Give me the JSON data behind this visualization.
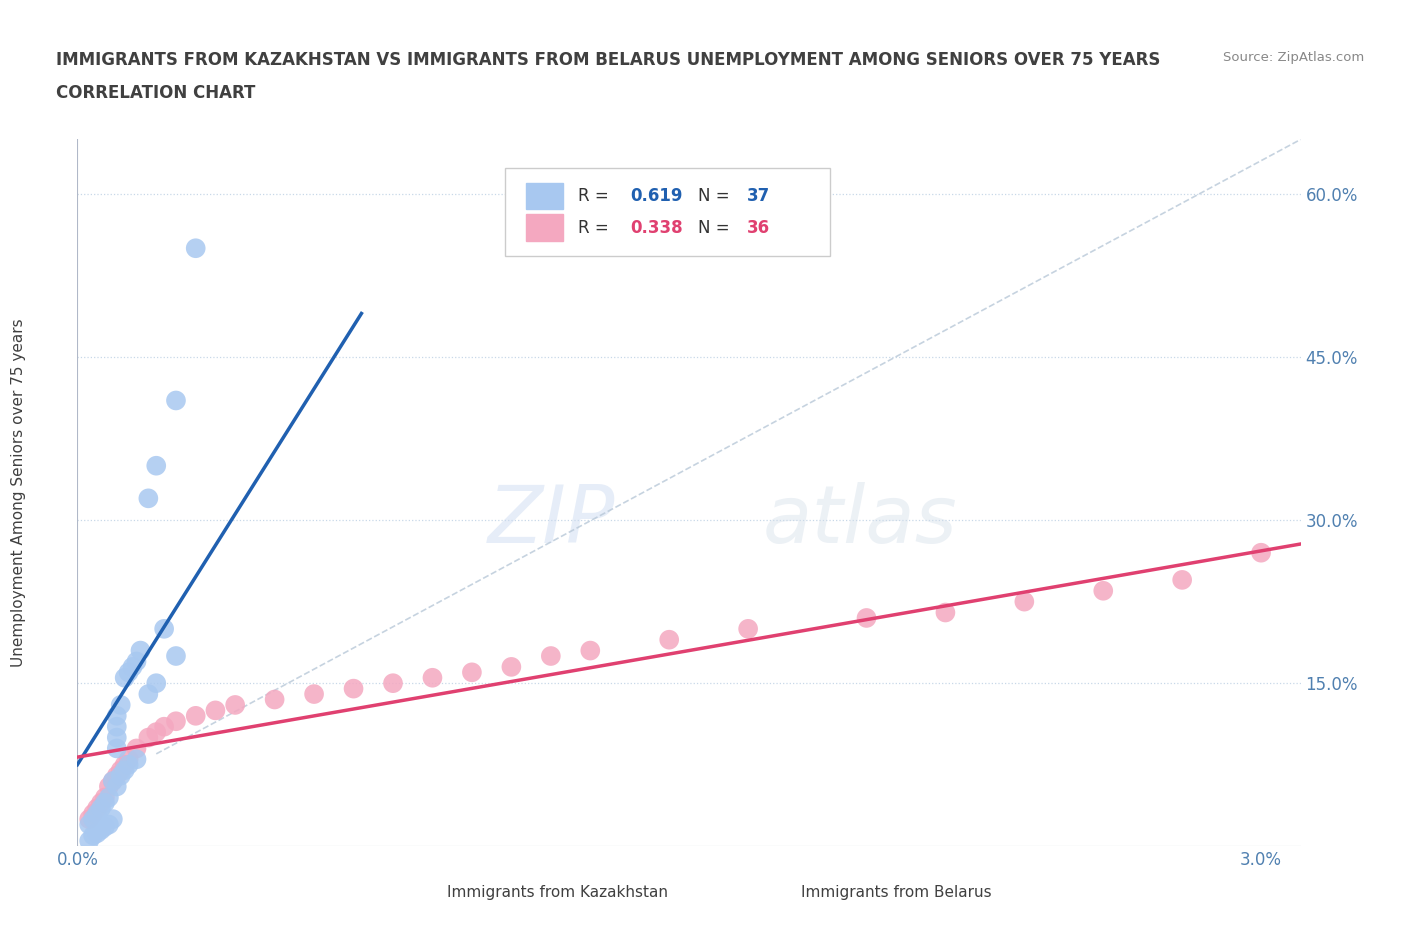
{
  "title_line1": "IMMIGRANTS FROM KAZAKHSTAN VS IMMIGRANTS FROM BELARUS UNEMPLOYMENT AMONG SENIORS OVER 75 YEARS",
  "title_line2": "CORRELATION CHART",
  "source": "Source: ZipAtlas.com",
  "ylabel": "Unemployment Among Seniors over 75 years",
  "watermark": "ZIPatlas",
  "r_kaz": 0.619,
  "n_kaz": 37,
  "r_bel": 0.338,
  "n_bel": 36,
  "kaz_color": "#a8c8f0",
  "bel_color": "#f4a8c0",
  "kaz_line_color": "#2060b0",
  "bel_line_color": "#e04070",
  "diag_color": "#b8c8d8",
  "title_color": "#404040",
  "axis_color": "#5080b0",
  "grid_color": "#c8d8e8",
  "bg_color": "#ffffff",
  "kaz_x": [
    0.0003,
    0.0004,
    0.0005,
    0.0006,
    0.0007,
    0.0008,
    0.0009,
    0.001,
    0.001,
    0.001,
    0.001,
    0.0011,
    0.0012,
    0.0013,
    0.0014,
    0.0015,
    0.0016,
    0.0018,
    0.002,
    0.0022,
    0.0025,
    0.0003,
    0.0004,
    0.0005,
    0.0006,
    0.0007,
    0.0008,
    0.0009,
    0.001,
    0.0011,
    0.0012,
    0.0013,
    0.0015,
    0.0018,
    0.002,
    0.0025,
    0.003
  ],
  "kaz_y": [
    0.02,
    0.025,
    0.03,
    0.035,
    0.04,
    0.045,
    0.06,
    0.09,
    0.1,
    0.11,
    0.12,
    0.13,
    0.155,
    0.16,
    0.165,
    0.17,
    0.18,
    0.32,
    0.35,
    0.2,
    0.175,
    0.005,
    0.01,
    0.012,
    0.015,
    0.018,
    0.02,
    0.025,
    0.055,
    0.065,
    0.07,
    0.075,
    0.08,
    0.14,
    0.15,
    0.41,
    0.55
  ],
  "bel_x": [
    0.0003,
    0.0004,
    0.0005,
    0.0006,
    0.0007,
    0.0008,
    0.0009,
    0.001,
    0.0011,
    0.0012,
    0.0013,
    0.0015,
    0.0018,
    0.002,
    0.0022,
    0.0025,
    0.003,
    0.0035,
    0.004,
    0.005,
    0.006,
    0.007,
    0.008,
    0.009,
    0.01,
    0.011,
    0.012,
    0.013,
    0.015,
    0.017,
    0.02,
    0.022,
    0.024,
    0.026,
    0.028,
    0.03
  ],
  "bel_y": [
    0.025,
    0.03,
    0.035,
    0.04,
    0.045,
    0.055,
    0.06,
    0.065,
    0.07,
    0.075,
    0.08,
    0.09,
    0.1,
    0.105,
    0.11,
    0.115,
    0.12,
    0.125,
    0.13,
    0.135,
    0.14,
    0.145,
    0.15,
    0.155,
    0.16,
    0.165,
    0.175,
    0.18,
    0.19,
    0.2,
    0.21,
    0.215,
    0.225,
    0.235,
    0.245,
    0.27
  ],
  "xmin": 0.0,
  "xmax": 0.031,
  "ymin": 0.0,
  "ymax": 0.65,
  "yticks": [
    0.0,
    0.15,
    0.3,
    0.45,
    0.6
  ],
  "ytick_labels": [
    "",
    "15.0%",
    "30.0%",
    "45.0%",
    "60.0%"
  ],
  "xticks": [
    0.0,
    0.005,
    0.01,
    0.015,
    0.02,
    0.025,
    0.03
  ],
  "xtick_labels": [
    "0.0%",
    "",
    "",
    "",
    "",
    "",
    "3.0%"
  ],
  "kaz_trend_x": [
    0.0,
    0.0072
  ],
  "kaz_trend_y": [
    0.075,
    0.49
  ],
  "bel_trend_x": [
    0.0,
    0.031
  ],
  "bel_trend_y": [
    0.082,
    0.278
  ]
}
